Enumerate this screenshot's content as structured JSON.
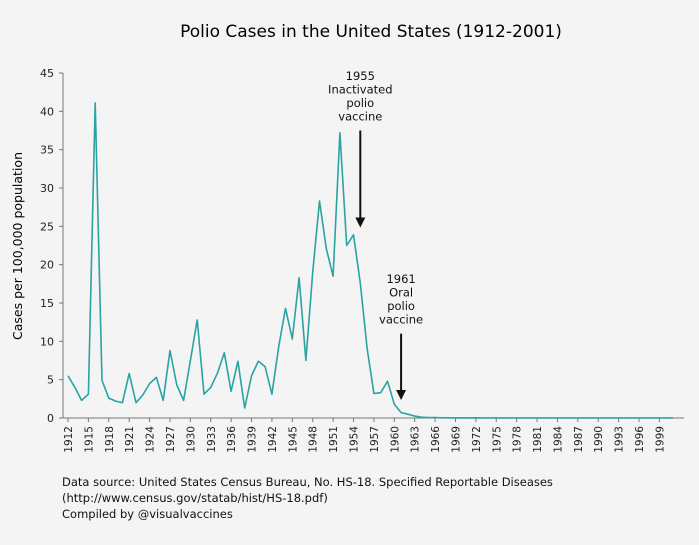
{
  "chart_data": {
    "type": "line",
    "title": "Polio Cases in the United States (1912-2001)",
    "xlabel": "",
    "ylabel": "Cases per 100,000 population",
    "ylim": [
      0,
      45
    ],
    "xlim": [
      1912,
      2001
    ],
    "yticks": [
      0,
      5,
      10,
      15,
      20,
      25,
      30,
      35,
      40,
      45
    ],
    "xticks": [
      1912,
      1915,
      1918,
      1921,
      1924,
      1927,
      1930,
      1933,
      1936,
      1939,
      1942,
      1945,
      1948,
      1951,
      1954,
      1957,
      1960,
      1963,
      1966,
      1969,
      1972,
      1975,
      1978,
      1981,
      1984,
      1987,
      1990,
      1993,
      1996,
      1999
    ],
    "grid": false,
    "line_color": "#2aa3a3",
    "series": [
      {
        "name": "",
        "x": [
          1912,
          1913,
          1914,
          1915,
          1916,
          1917,
          1918,
          1919,
          1920,
          1921,
          1922,
          1923,
          1924,
          1925,
          1926,
          1927,
          1928,
          1929,
          1930,
          1931,
          1932,
          1933,
          1934,
          1935,
          1936,
          1937,
          1938,
          1939,
          1940,
          1941,
          1942,
          1943,
          1944,
          1945,
          1946,
          1947,
          1948,
          1949,
          1950,
          1951,
          1952,
          1953,
          1954,
          1955,
          1956,
          1957,
          1958,
          1959,
          1960,
          1961,
          1962,
          1963,
          1964,
          1965,
          1966,
          1967,
          1968,
          1969,
          1970,
          1971,
          1972,
          1973,
          1974,
          1975,
          1976,
          1977,
          1978,
          1979,
          1980,
          1981,
          1982,
          1983,
          1984,
          1985,
          1986,
          1987,
          1988,
          1989,
          1990,
          1991,
          1992,
          1993,
          1994,
          1995,
          1996,
          1997,
          1998,
          1999,
          2000,
          2001
        ],
        "y": [
          5.5,
          4.0,
          2.3,
          3.1,
          41.1,
          4.9,
          2.6,
          2.2,
          2.0,
          5.8,
          2.0,
          3.0,
          4.5,
          5.3,
          2.3,
          8.8,
          4.3,
          2.3,
          7.5,
          12.8,
          3.1,
          4.0,
          5.9,
          8.5,
          3.5,
          7.4,
          1.3,
          5.5,
          7.4,
          6.7,
          3.1,
          9.3,
          14.3,
          10.3,
          18.3,
          7.5,
          19.0,
          28.3,
          22.1,
          18.5,
          37.2,
          22.5,
          23.9,
          17.6,
          9.1,
          3.2,
          3.3,
          4.8,
          1.8,
          0.7,
          0.5,
          0.25,
          0.1,
          0.05,
          0.06,
          0.02,
          0.03,
          0.01,
          0.02,
          0.01,
          0.02,
          0.01,
          0.01,
          0.01,
          0.01,
          0.01,
          0.01,
          0.01,
          0.01,
          0.01,
          0.01,
          0.01,
          0.01,
          0.01,
          0.01,
          0.01,
          0.01,
          0.01,
          0.01,
          0.01,
          0.01,
          0.01,
          0.01,
          0.01,
          0.01,
          0.01,
          0.01,
          0.01,
          0.01,
          0.01
        ]
      }
    ],
    "annotations": [
      {
        "lines": [
          "1955",
          "Inactivated",
          "polio",
          "vaccine"
        ],
        "arrow_x": 1955,
        "arrow_from_y": 37.5,
        "arrow_to_y": 25.5
      },
      {
        "lines": [
          "1961",
          "Oral",
          "polio",
          "vaccine"
        ],
        "arrow_x": 1961,
        "arrow_from_y": 11,
        "arrow_to_y": 3.0
      }
    ]
  },
  "footer": {
    "line1": "Data source: United States Census Bureau, No. HS-18. Specified Reportable Diseases",
    "line2": "(http://www.census.gov/statab/hist/HS-18.pdf)",
    "line3": "Compiled by @visualvaccines"
  }
}
